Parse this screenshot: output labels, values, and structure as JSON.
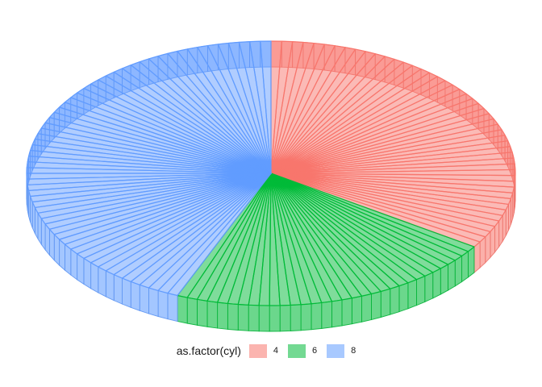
{
  "chart_data": {
    "type": "pie",
    "title": "",
    "legend_title": "as.factor(cyl)",
    "legend_position": "bottom",
    "categories": [
      "4",
      "6",
      "8"
    ],
    "values": [
      11,
      7,
      14
    ],
    "colors": [
      "#F8766D",
      "#00BA38",
      "#619CFF"
    ],
    "fill_opacity": 0.5
  }
}
